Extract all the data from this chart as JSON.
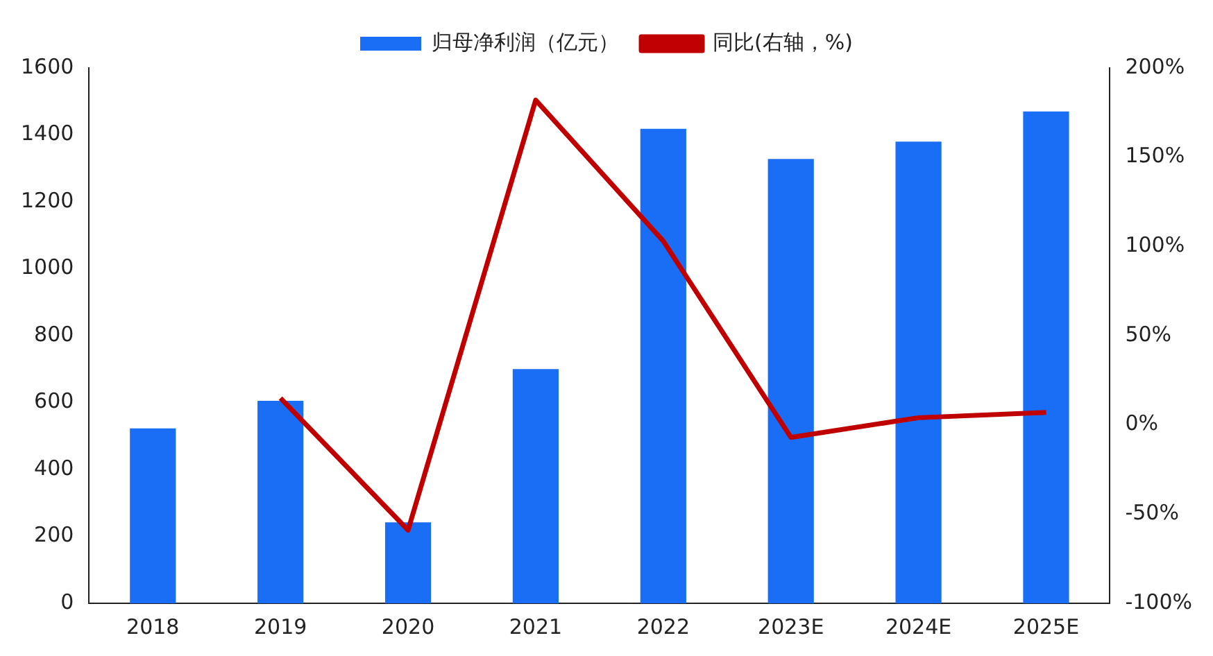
{
  "chart_data": {
    "type": "bar",
    "categories": [
      "2018",
      "2019",
      "2020",
      "2021",
      "2022",
      "2023E",
      "2024E",
      "2025E"
    ],
    "series": [
      {
        "name": "归母净利润（亿元）",
        "color": "#1a6ef5",
        "values": [
          523,
          605,
          242,
          700,
          1418,
          1328,
          1380,
          1470
        ]
      },
      {
        "name": "同比(右轴，%)",
        "type": "line",
        "axis": "y2",
        "color": "#c00000",
        "values": [
          null,
          15,
          -59,
          182,
          103,
          -7,
          4,
          7
        ]
      }
    ],
    "ylim": [
      0,
      1600
    ],
    "yticks": [
      0,
      200,
      400,
      600,
      800,
      1000,
      1200,
      1400,
      1600
    ],
    "y2lim": [
      -100,
      200
    ],
    "y2ticks": [
      {
        "value": -100,
        "label": "-100%"
      },
      {
        "value": -50,
        "label": "-50%"
      },
      {
        "value": 0,
        "label": "0%"
      },
      {
        "value": 50,
        "label": "50%"
      },
      {
        "value": 100,
        "label": "100%"
      },
      {
        "value": 150,
        "label": "150%"
      },
      {
        "value": 200,
        "label": "200%"
      }
    ],
    "grid": false,
    "legend": "top",
    "marker": "none"
  }
}
